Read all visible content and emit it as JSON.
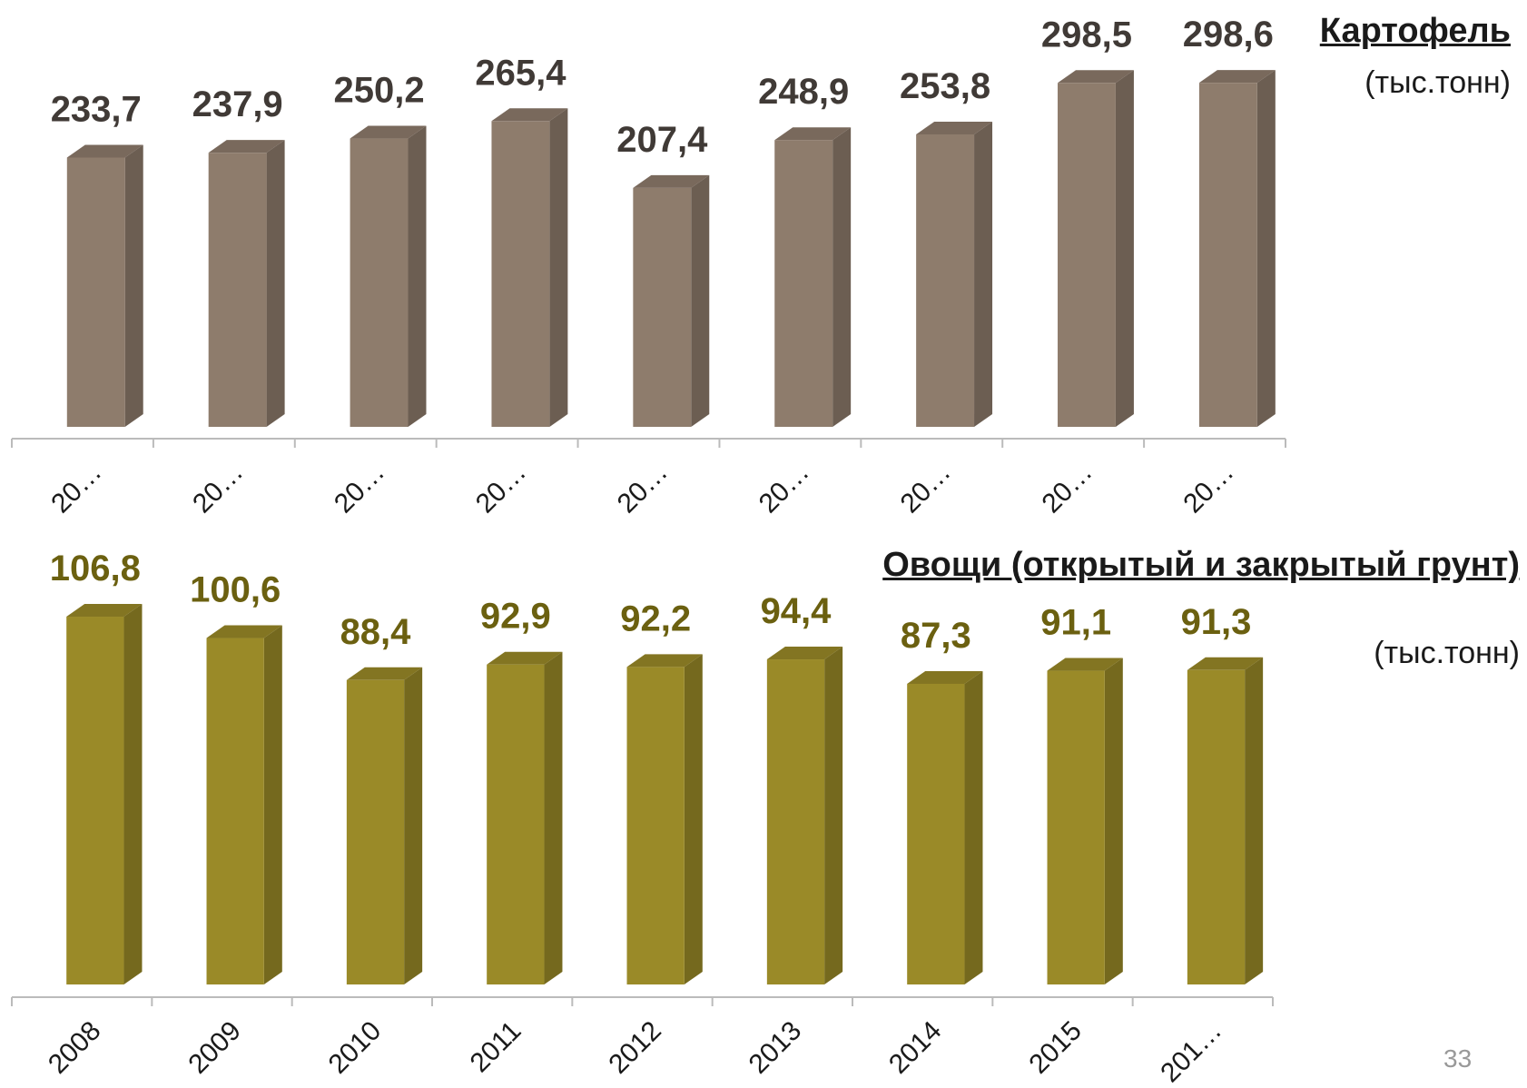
{
  "chart_data": [
    {
      "type": "bar",
      "title": "Картофель",
      "subtitle": "(тыс.тонн)",
      "categories": [
        "20…",
        "20…",
        "20…",
        "20…",
        "20…",
        "20…",
        "20…",
        "20…",
        "20…"
      ],
      "values": [
        233.7,
        237.9,
        250.2,
        265.4,
        207.4,
        248.9,
        253.8,
        298.5,
        298.6
      ],
      "value_labels": [
        "233,7",
        "237,9",
        "250,2",
        "265,4",
        "207,4",
        "248,9",
        "253,8",
        "298,5",
        "298,6"
      ],
      "color": "#8e7c6c",
      "ylim": [
        0,
        320
      ]
    },
    {
      "type": "bar",
      "title": "Овощи (открытый и закрытый грунт)",
      "subtitle": "(тыс.тонн)",
      "categories": [
        "2008",
        "2009",
        "2010",
        "2011",
        "2012",
        "2013",
        "2014",
        "2015",
        "201…"
      ],
      "values": [
        106.8,
        100.6,
        88.4,
        92.9,
        92.2,
        94.4,
        87.3,
        91.1,
        91.3
      ],
      "value_labels": [
        "106,8",
        "100,6",
        "88,4",
        "92,9",
        "92,2",
        "94,4",
        "87,3",
        "91,1",
        "91,3"
      ],
      "color": "#9a8a28",
      "ylim": [
        0,
        125
      ]
    }
  ],
  "page_number": "33"
}
